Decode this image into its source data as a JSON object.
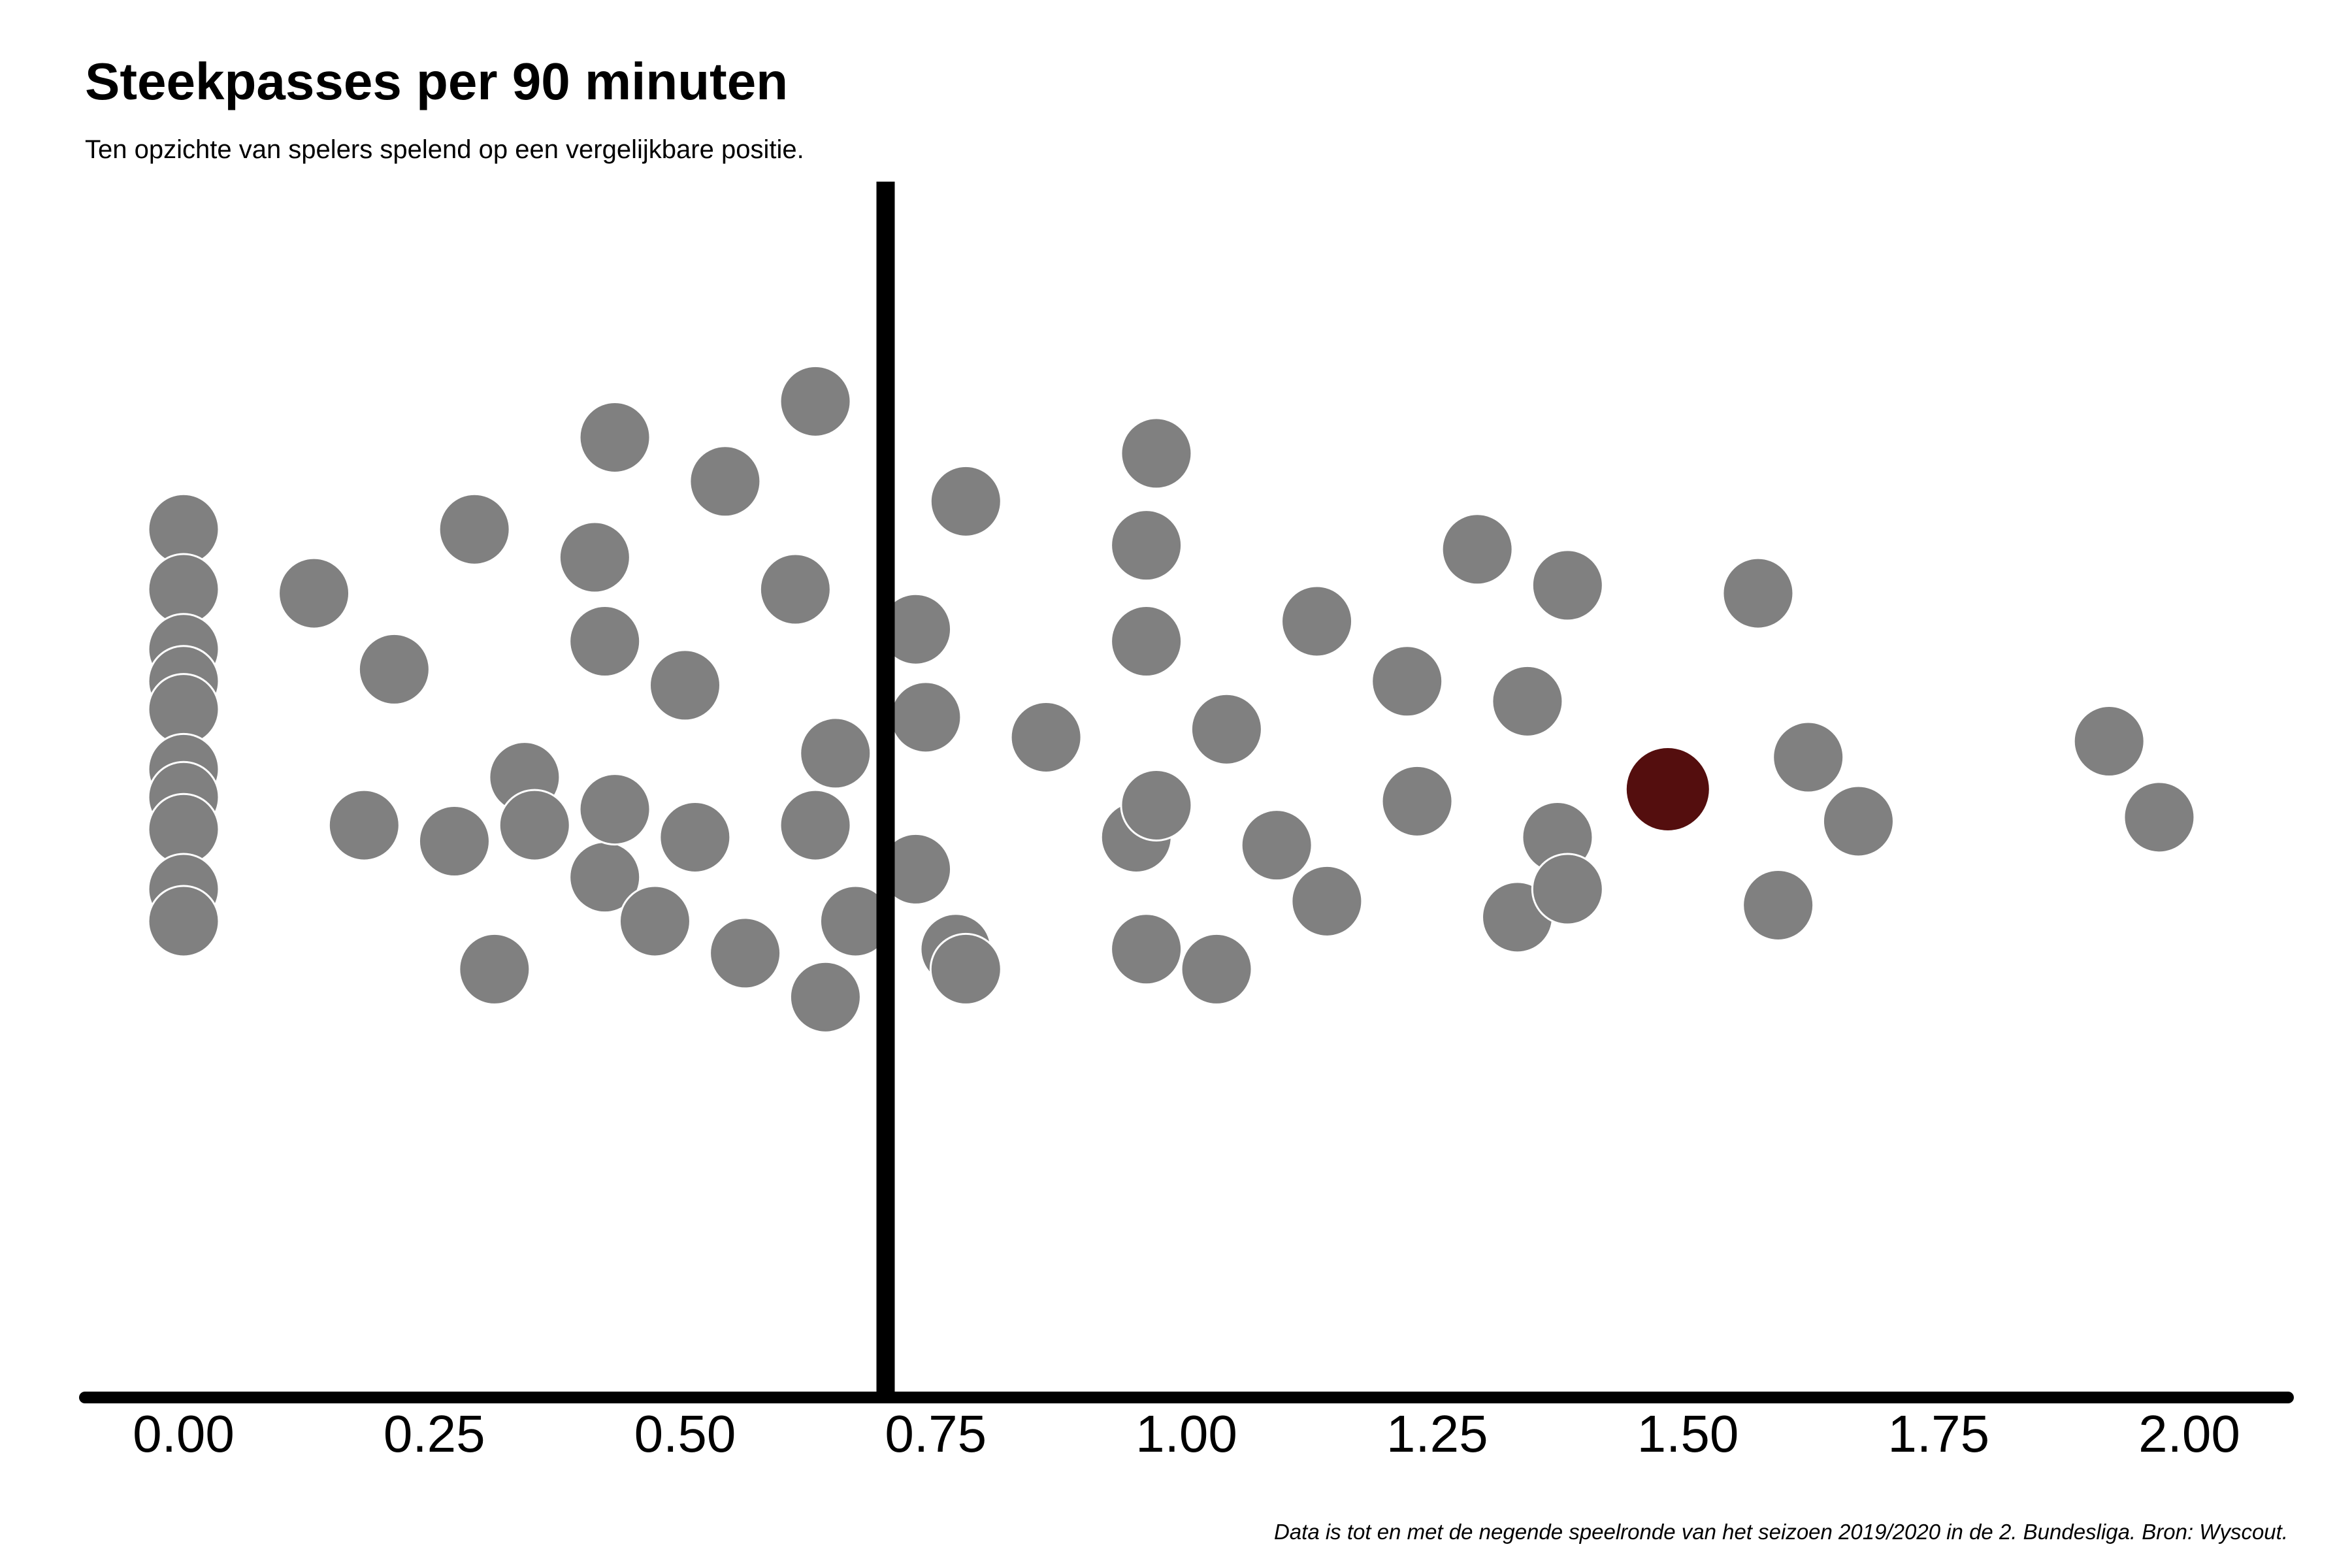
{
  "chart_data": {
    "type": "scatter",
    "title": "Steekpasses per 90 minuten",
    "subtitle": "Ten opzichte van spelers spelend op een vergelijkbare positie.",
    "caption": "Data is tot en met de negende speelronde van het seizoen 2019/2020 in de 2. Bundesliga. Bron: Wyscout.",
    "xlabel": "",
    "ylabel": "",
    "xlim": [
      -0.1,
      2.1
    ],
    "x_ticks": [
      "0.00",
      "0.25",
      "0.50",
      "0.75",
      "1.00",
      "1.25",
      "1.50",
      "1.75",
      "2.00"
    ],
    "grid": false,
    "reference_line_x": 0.7,
    "colors": {
      "points": "#808080",
      "highlight": "#540e0e",
      "axis": "#000000"
    },
    "series": [
      {
        "values": [
          {
            "x": 0.0,
            "y": 0.65
          },
          {
            "x": 0.0,
            "y": 0.5
          },
          {
            "x": 0.0,
            "y": 0.35
          },
          {
            "x": 0.0,
            "y": 0.27
          },
          {
            "x": 0.0,
            "y": 0.2
          },
          {
            "x": 0.0,
            "y": 0.05
          },
          {
            "x": 0.0,
            "y": -0.02
          },
          {
            "x": 0.0,
            "y": -0.1
          },
          {
            "x": 0.0,
            "y": -0.25
          },
          {
            "x": 0.0,
            "y": -0.33
          },
          {
            "x": 0.13,
            "y": 0.49
          },
          {
            "x": 0.18,
            "y": -0.09
          },
          {
            "x": 0.21,
            "y": 0.3
          },
          {
            "x": 0.27,
            "y": -0.13
          },
          {
            "x": 0.29,
            "y": 0.65
          },
          {
            "x": 0.31,
            "y": -0.45
          },
          {
            "x": 0.34,
            "y": 0.03
          },
          {
            "x": 0.35,
            "y": -0.09
          },
          {
            "x": 0.41,
            "y": 0.58
          },
          {
            "x": 0.42,
            "y": 0.37
          },
          {
            "x": 0.42,
            "y": -0.22
          },
          {
            "x": 0.43,
            "y": 0.88
          },
          {
            "x": 0.43,
            "y": -0.05
          },
          {
            "x": 0.47,
            "y": -0.33
          },
          {
            "x": 0.5,
            "y": 0.26
          },
          {
            "x": 0.51,
            "y": -0.12
          },
          {
            "x": 0.54,
            "y": 0.77
          },
          {
            "x": 0.56,
            "y": -0.41
          },
          {
            "x": 0.61,
            "y": 0.5
          },
          {
            "x": 0.63,
            "y": 0.97
          },
          {
            "x": 0.63,
            "y": -0.09
          },
          {
            "x": 0.64,
            "y": -0.52
          },
          {
            "x": 0.65,
            "y": 0.09
          },
          {
            "x": 0.67,
            "y": -0.33
          },
          {
            "x": 0.73,
            "y": 0.4
          },
          {
            "x": 0.73,
            "y": -0.2
          },
          {
            "x": 0.74,
            "y": 0.18
          },
          {
            "x": 0.77,
            "y": -0.4
          },
          {
            "x": 0.78,
            "y": 0.72
          },
          {
            "x": 0.78,
            "y": -0.45
          },
          {
            "x": 0.86,
            "y": 0.13
          },
          {
            "x": 0.95,
            "y": -0.12
          },
          {
            "x": 0.96,
            "y": 0.61
          },
          {
            "x": 0.96,
            "y": 0.37
          },
          {
            "x": 0.96,
            "y": -0.4
          },
          {
            "x": 0.97,
            "y": 0.84
          },
          {
            "x": 0.97,
            "y": -0.04
          },
          {
            "x": 1.03,
            "y": -0.45
          },
          {
            "x": 1.04,
            "y": 0.15
          },
          {
            "x": 1.09,
            "y": -0.14
          },
          {
            "x": 1.13,
            "y": 0.42
          },
          {
            "x": 1.14,
            "y": -0.28
          },
          {
            "x": 1.22,
            "y": 0.27
          },
          {
            "x": 1.23,
            "y": -0.03
          },
          {
            "x": 1.29,
            "y": 0.6
          },
          {
            "x": 1.33,
            "y": -0.32
          },
          {
            "x": 1.34,
            "y": 0.22
          },
          {
            "x": 1.37,
            "y": -0.12
          },
          {
            "x": 1.38,
            "y": 0.51
          },
          {
            "x": 1.38,
            "y": -0.25
          },
          {
            "x": 1.57,
            "y": 0.49
          },
          {
            "x": 1.59,
            "y": -0.29
          },
          {
            "x": 1.62,
            "y": 0.08
          },
          {
            "x": 1.67,
            "y": -0.08
          },
          {
            "x": 1.92,
            "y": 0.12
          },
          {
            "x": 1.97,
            "y": -0.07
          }
        ]
      }
    ],
    "highlight": {
      "x": 1.48,
      "y": 0.0
    }
  }
}
